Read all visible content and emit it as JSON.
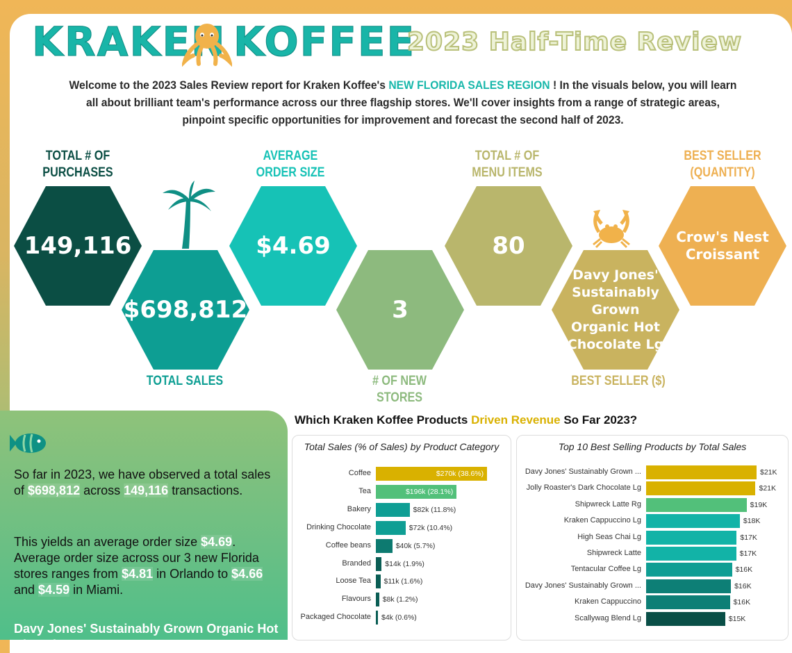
{
  "header": {
    "logo_left": "KRAKEN",
    "logo_right": "KOFFEE",
    "title": "2023 Half-Time Review"
  },
  "intro": {
    "part1": "Welcome to  the 2023 Sales Review report for Kraken Koffee's ",
    "highlight": "NEW FLORIDA SALES REGION",
    "part2": " !  In the visuals below, you will learn all about brilliant team's performance across our three flagship stores. We'll cover insights from a range of strategic areas, pinpoint specific opportunities for improvement and forecast the second half of 2023."
  },
  "kpis": {
    "purchases": {
      "label": "TOTAL # OF PURCHASES",
      "value": "149,116",
      "color": "#0b4e44"
    },
    "sales": {
      "label": "TOTAL SALES",
      "value": "$698,812",
      "color": "#0d9e93"
    },
    "avg_order": {
      "label": "AVERAGE ORDER SIZE",
      "value": "$4.69",
      "color": "#16c2b6"
    },
    "new_stores": {
      "label": "# OF NEW STORES",
      "value": "3",
      "color": "#8dba7e"
    },
    "menu_items": {
      "label": "TOTAL # OF MENU ITEMS",
      "value": "80",
      "color": "#b9b66c"
    },
    "best_seller_dollar": {
      "label": "BEST SELLER ($)",
      "value": "Davy Jones' Sustainably Grown Organic Hot Chocolate Lg",
      "color": "#c9b35f"
    },
    "best_seller_qty": {
      "label": "BEST SELLER (QUANTITY)",
      "value": "Crow's Nest Croissant",
      "color": "#eeb052"
    }
  },
  "summary": {
    "p1_a": "So far in 2023, we have observed a total sales of ",
    "p1_sales": "$698,812",
    "p1_b": " across ",
    "p1_tx": "149,116",
    "p1_c": " transactions.",
    "p2_a": "This yields an average order size ",
    "p2_avg": "$4.69",
    "p2_b": ". Average order size across our 3 new Florida stores ranges from ",
    "p2_orl": "$4.81",
    "p2_c": " in Orlando to ",
    "p2_mid": "$4.66",
    "p2_d": "  and ",
    "p2_mia": "$4.59",
    "p2_e": " in Miami.",
    "p3": "Davy Jones' Sustainably Grown Organic Hot Chocolate"
  },
  "section": {
    "title_a": "Which Kraken Koffee Products ",
    "title_hl": "Driven Revenue",
    "title_b": " So Far 2023?"
  },
  "chart_data": [
    {
      "type": "bar",
      "title": "Total Sales (% of Sales) by Product Category",
      "categories": [
        "Coffee",
        "Tea",
        "Bakery",
        "Drinking Chocolate",
        "Coffee beans",
        "Branded",
        "Loose Tea",
        "Flavours",
        "Packaged Chocolate"
      ],
      "values": [
        270,
        196,
        82,
        72,
        40,
        14,
        11,
        8,
        4
      ],
      "labels": [
        "$270k (38.6%)",
        "$196k (28.1%)",
        "$82k (11.8%)",
        "$72k (10.4%)",
        "$40k (5.7%)",
        "$14k (1.9%)",
        "$11k (1.6%)",
        "$8k (1.2%)",
        "$4k (0.6%)"
      ],
      "colors": [
        "#d9b100",
        "#52c07a",
        "#0f9e94",
        "#0f9e94",
        "#0d7a70",
        "#0b5e55",
        "#0b5e55",
        "#0b5e55",
        "#0b5e55"
      ],
      "xlim": [
        0,
        290
      ]
    },
    {
      "type": "bar",
      "title": "Top 10 Best Selling Products by Total Sales",
      "categories": [
        "Davy Jones' Sustainably Grown ...",
        "Jolly Roaster's Dark Chocolate Lg",
        "Shipwreck Latte Rg",
        "Kraken Cappuccino Lg",
        "High Seas Chai Lg",
        "Shipwreck Latte",
        "Tentacular Coffee Lg",
        "Davy Jones' Sustainably Grown ...",
        "Kraken Cappuccino",
        "Scallywag Blend Lg"
      ],
      "values": [
        21.1,
        20.9,
        19.2,
        17.9,
        17.3,
        17.2,
        16.4,
        16.2,
        16.0,
        15.1
      ],
      "labels": [
        "$21K",
        "$21K",
        "$19K",
        "$18K",
        "$17K",
        "$17K",
        "$16K",
        "$16K",
        "$16K",
        "$15K"
      ],
      "colors": [
        "#d9b100",
        "#d9b100",
        "#52c07a",
        "#12b3a7",
        "#12b3a7",
        "#12b3a7",
        "#0f9e94",
        "#0d7f76",
        "#0d7f76",
        "#0a4f47"
      ],
      "xlim": [
        0,
        21.1
      ]
    }
  ]
}
